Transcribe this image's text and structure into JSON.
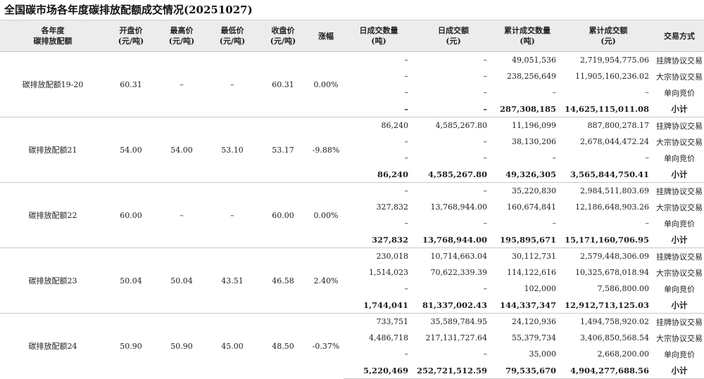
{
  "page": {
    "title": "全国碳市场各年度碳排放配额成交情况(20251027)"
  },
  "headers": [
    {
      "l1": "各年度",
      "l2": "碳排放配额"
    },
    {
      "l1": "开盘价",
      "l2": "(元/吨)"
    },
    {
      "l1": "最高价",
      "l2": "(元/吨)"
    },
    {
      "l1": "最低价",
      "l2": "(元/吨)"
    },
    {
      "l1": "收盘价",
      "l2": "(元/吨)"
    },
    {
      "l1": "涨幅",
      "l2": ""
    },
    {
      "l1": "日成交数量",
      "l2": "(吨)"
    },
    {
      "l1": "日成交额",
      "l2": "(元)"
    },
    {
      "l1": "累计成交数量",
      "l2": "(吨)"
    },
    {
      "l1": "累计成交额",
      "l2": "(元)"
    },
    {
      "l1": "交易方式",
      "l2": ""
    }
  ],
  "groups": [
    {
      "name": "碳排放配额19-20",
      "open": "60.31",
      "high": "–",
      "low": "–",
      "close": "60.31",
      "change": "0.00%",
      "rows": [
        {
          "dq": "–",
          "da": "–",
          "cq": "49,051,536",
          "ca": "2,719,954,775.06",
          "mode": "挂牌协议交易"
        },
        {
          "dq": "–",
          "da": "–",
          "cq": "238,256,649",
          "ca": "11,905,160,236.02",
          "mode": "大宗协议交易"
        },
        {
          "dq": "–",
          "da": "–",
          "cq": "–",
          "ca": "–",
          "mode": "单向竞价"
        },
        {
          "dq": "–",
          "da": "–",
          "cq": "287,308,185",
          "ca": "14,625,115,011.08",
          "mode": "小计"
        }
      ]
    },
    {
      "name": "碳排放配额21",
      "open": "54.00",
      "high": "54.00",
      "low": "53.10",
      "close": "53.17",
      "change": "-9.88%",
      "rows": [
        {
          "dq": "86,240",
          "da": "4,585,267.80",
          "cq": "11,196,099",
          "ca": "887,800,278.17",
          "mode": "挂牌协议交易"
        },
        {
          "dq": "–",
          "da": "–",
          "cq": "38,130,206",
          "ca": "2,678,044,472.24",
          "mode": "大宗协议交易"
        },
        {
          "dq": "–",
          "da": "–",
          "cq": "–",
          "ca": "–",
          "mode": "单向竞价"
        },
        {
          "dq": "86,240",
          "da": "4,585,267.80",
          "cq": "49,326,305",
          "ca": "3,565,844,750.41",
          "mode": "小计"
        }
      ]
    },
    {
      "name": "碳排放配额22",
      "open": "60.00",
      "high": "–",
      "low": "–",
      "close": "60.00",
      "change": "0.00%",
      "rows": [
        {
          "dq": "–",
          "da": "–",
          "cq": "35,220,830",
          "ca": "2,984,511,803.69",
          "mode": "挂牌协议交易"
        },
        {
          "dq": "327,832",
          "da": "13,768,944.00",
          "cq": "160,674,841",
          "ca": "12,186,648,903.26",
          "mode": "大宗协议交易"
        },
        {
          "dq": "–",
          "da": "–",
          "cq": "–",
          "ca": "–",
          "mode": "单向竞价"
        },
        {
          "dq": "327,832",
          "da": "13,768,944.00",
          "cq": "195,895,671",
          "ca": "15,171,160,706.95",
          "mode": "小计"
        }
      ]
    },
    {
      "name": "碳排放配额23",
      "open": "50.04",
      "high": "50.04",
      "low": "43.51",
      "close": "46.58",
      "change": "2.40%",
      "rows": [
        {
          "dq": "230,018",
          "da": "10,714,663.04",
          "cq": "30,112,731",
          "ca": "2,579,448,306.09",
          "mode": "挂牌协议交易"
        },
        {
          "dq": "1,514,023",
          "da": "70,622,339.39",
          "cq": "114,122,616",
          "ca": "10,325,678,018.94",
          "mode": "大宗协议交易"
        },
        {
          "dq": "–",
          "da": "–",
          "cq": "102,000",
          "ca": "7,586,800.00",
          "mode": "单向竞价"
        },
        {
          "dq": "1,744,041",
          "da": "81,337,002.43",
          "cq": "144,337,347",
          "ca": "12,912,713,125.03",
          "mode": "小计"
        }
      ]
    },
    {
      "name": "碳排放配额24",
      "open": "50.90",
      "high": "50.90",
      "low": "45.00",
      "close": "48.50",
      "change": "-0.37%",
      "rows": [
        {
          "dq": "733,751",
          "da": "35,589,784.95",
          "cq": "24,120,936",
          "ca": "1,494,758,920.02",
          "mode": "挂牌协议交易"
        },
        {
          "dq": "4,486,718",
          "da": "217,131,727.64",
          "cq": "55,379,734",
          "ca": "3,406,850,568.54",
          "mode": "大宗协议交易"
        },
        {
          "dq": "–",
          "da": "–",
          "cq": "35,000",
          "ca": "2,668,200.00",
          "mode": "单向竞价"
        },
        {
          "dq": "5,220,469",
          "da": "252,721,512.59",
          "cq": "79,535,670",
          "ca": "4,904,277,688.56",
          "mode": "小计"
        }
      ]
    }
  ]
}
